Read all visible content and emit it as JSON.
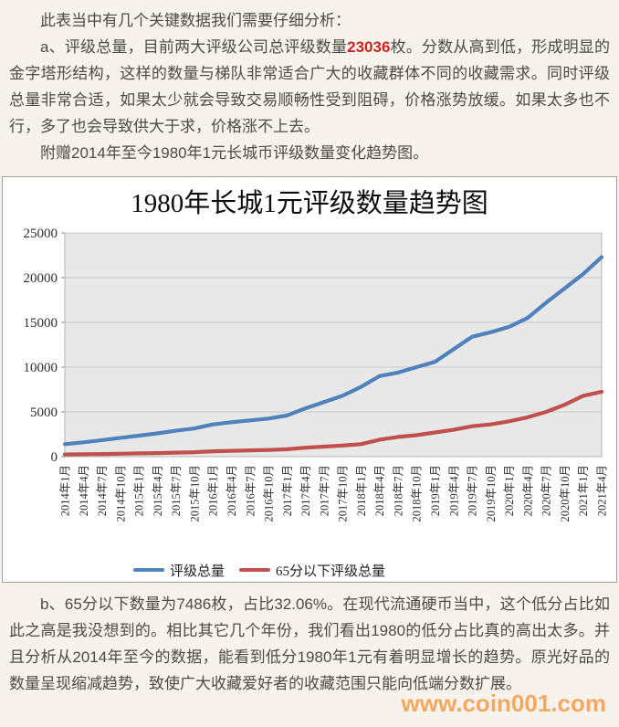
{
  "page": {
    "background": "#f7f3ec",
    "watermark": "www.coin001.com",
    "watermark_color": "#f3a356",
    "highlight_color": "#cf2323"
  },
  "paragraphs": {
    "intro": "此表当中有几个关键数据我们需要仔细分析：",
    "a_prefix": "a、评级总量，目前两大评级公司总评级数量",
    "a_highlight": "23036",
    "a_suffix": "枚。分数从高到低，形成明显的金字塔形结构，这样的数量与梯队非常适合广大的收藏群体不同的收藏需求。同时评级总量非常合适，如果太少就会导致交易顺畅性受到阻碍，价格涨势放缓。如果太多也不行，多了也会导致供大于求，价格涨不上去。",
    "chart_note": "附赠2014年至今1980年1元长城币评级数量变化趋势图。",
    "b": "b、65分以下数量为7486枚，占比32.06%。在现代流通硬币当中，这个低分占比如此之高是我没想到的。相比其它几个年份，我们看出1980的低分占比真的高出太多。并且分析从2014年至今的数据，能看到低分1980年1元有着明显增长的趋势。原光好品的数量呈现缩减趋势，致使广大收藏爱好者的收藏范围只能向低端分数扩展。"
  },
  "chart_data": {
    "type": "line",
    "title": "1980年长城1元评级数量趋势图",
    "categories": [
      "2014年1月",
      "2014年4月",
      "2014年7月",
      "2014年10月",
      "2015年1月",
      "2015年4月",
      "2015年7月",
      "2015年10月",
      "2016年1月",
      "2016年4月",
      "2016年7月",
      "2016年10月",
      "2017年1月",
      "2017年4月",
      "2017年7月",
      "2017年10月",
      "2018年1月",
      "2018年4月",
      "2018年7月",
      "2018年10月",
      "2019年1月",
      "2019年4月",
      "2019年7月",
      "2019年10月",
      "2020年1月",
      "2020年4月",
      "2020年7月",
      "2020年10月",
      "2021年1月",
      "2021年4月"
    ],
    "series": [
      {
        "name": "评级总量",
        "color": "#4F81BD",
        "values": [
          1400,
          1600,
          1850,
          2100,
          2350,
          2600,
          2900,
          3150,
          3600,
          3850,
          4050,
          4250,
          4600,
          5400,
          6100,
          6800,
          7800,
          9000,
          9400,
          10000,
          10600,
          12000,
          13400,
          13900,
          14500,
          15500,
          17200,
          18800,
          20400,
          22300
        ]
      },
      {
        "name": "65分以下评级总量",
        "color": "#C0504D",
        "values": [
          250,
          280,
          300,
          330,
          370,
          400,
          450,
          500,
          600,
          650,
          700,
          750,
          830,
          1000,
          1120,
          1250,
          1400,
          1900,
          2200,
          2400,
          2700,
          3000,
          3400,
          3600,
          3950,
          4400,
          5000,
          5800,
          6800,
          7250
        ]
      }
    ],
    "ylim": [
      0,
      25000
    ],
    "ytick_step": 5000,
    "yticks": [
      0,
      5000,
      10000,
      15000,
      20000,
      25000
    ],
    "grid": true,
    "legend_position": "bottom",
    "plot_bg": "#e8e8e8",
    "grid_color": "#c9c9c9",
    "axis_color": "#b3b3b3"
  }
}
